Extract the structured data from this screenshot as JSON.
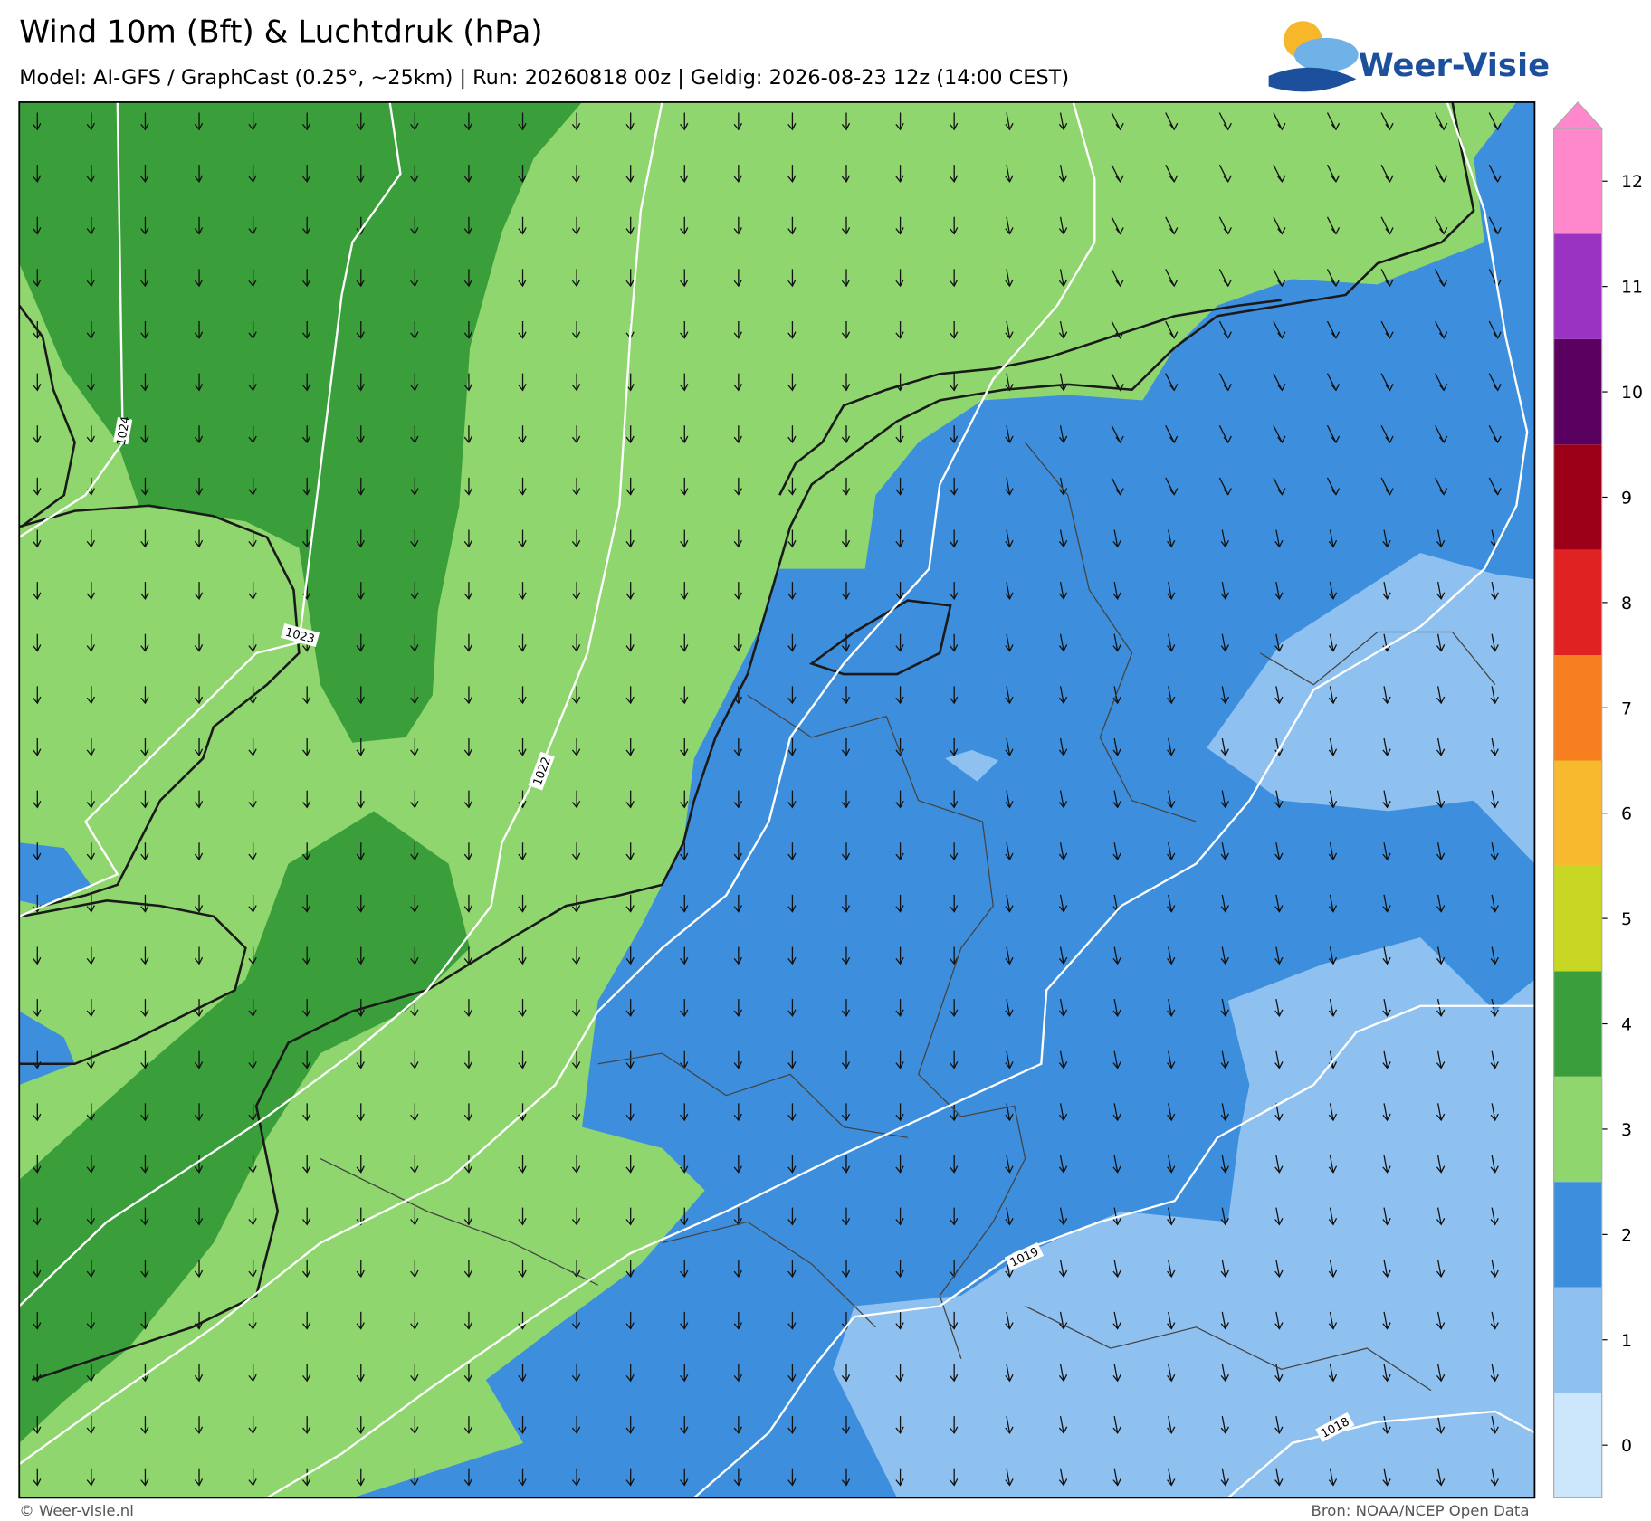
{
  "header": {
    "title": "Wind 10m (Bft) & Luchtdruk (hPa)",
    "subtitle": "Model: AI-GFS / GraphCast (0.25°, ~25km)  |  Run: 20260818 00z  |  Geldig: 2026-08-23 12z (14:00 CEST)",
    "logo": "Weer-Visie"
  },
  "contour_labels": [
    1024,
    1023,
    1022,
    1019,
    1018
  ],
  "colorbar": {
    "levels": [
      0,
      1,
      2,
      3,
      4,
      5,
      6,
      7,
      8,
      9,
      10,
      11,
      12
    ],
    "colors": [
      "#cce6fc",
      "#8fc1f0",
      "#3d8fde",
      "#8fd66e",
      "#3a9e3a",
      "#c8d624",
      "#f7b92e",
      "#f77f1f",
      "#e02222",
      "#9c0018",
      "#5a0060",
      "#9a33c2",
      "#ff88cc"
    ]
  },
  "footer": {
    "left": "© Weer-visie.nl",
    "right": "Bron: NOAA/NCEP Open Data"
  }
}
